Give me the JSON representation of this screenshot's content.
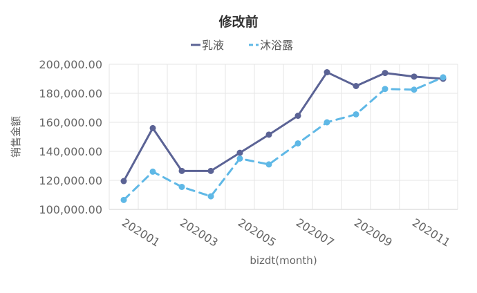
{
  "chart_data": {
    "type": "line",
    "title": "修改前",
    "xlabel": "bizdt(month)",
    "ylabel": "销售金额",
    "categories": [
      "202001",
      "202002",
      "202003",
      "202004",
      "202005",
      "202006",
      "202007",
      "202008",
      "202009",
      "202010",
      "202011",
      "202012"
    ],
    "x_tick_labels": [
      "202001",
      "202003",
      "202005",
      "202007",
      "202009",
      "202011"
    ],
    "y_tick_labels": [
      "100,000.00",
      "120,000.00",
      "140,000.00",
      "160,000.00",
      "180,000.00",
      "200,000.00"
    ],
    "ylim": [
      100000,
      200000
    ],
    "grid": true,
    "legend": "top",
    "series": [
      {
        "name": "乳液",
        "color": "#5b6395",
        "style": "solid",
        "values": [
          119500,
          156000,
          126500,
          126500,
          139000,
          151500,
          164500,
          194500,
          185000,
          194000,
          191500,
          190000
        ]
      },
      {
        "name": "沐浴露",
        "color": "#5fb8e6",
        "style": "dashed",
        "values": [
          106500,
          126000,
          115500,
          109000,
          135000,
          131000,
          145500,
          160000,
          165500,
          183000,
          182500,
          191000
        ]
      }
    ]
  }
}
